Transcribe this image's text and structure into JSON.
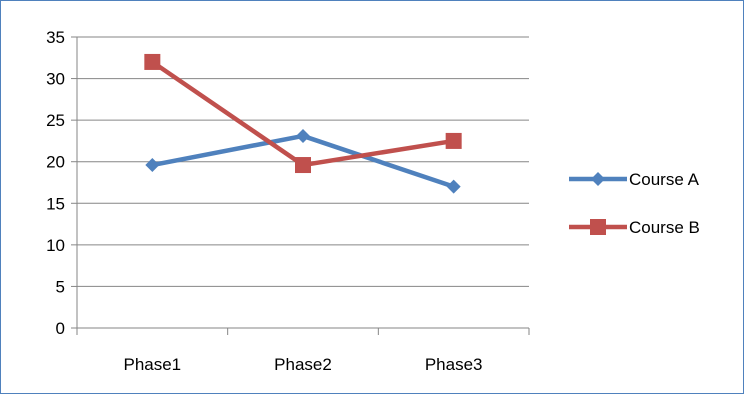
{
  "chart_data": {
    "type": "line",
    "categories": [
      "Phase1",
      "Phase2",
      "Phase3"
    ],
    "series": [
      {
        "name": "Course A",
        "values": [
          19.6,
          23.1,
          17.0
        ],
        "color": "#4f81bd",
        "marker": "diamond"
      },
      {
        "name": "Course B",
        "values": [
          32.0,
          19.6,
          22.5
        ],
        "color": "#c0504d",
        "marker": "square"
      }
    ],
    "yticks": [
      0,
      5,
      10,
      15,
      20,
      25,
      30,
      35
    ],
    "ylim": [
      0,
      35
    ],
    "grid": "horizontal",
    "legend": "right"
  }
}
